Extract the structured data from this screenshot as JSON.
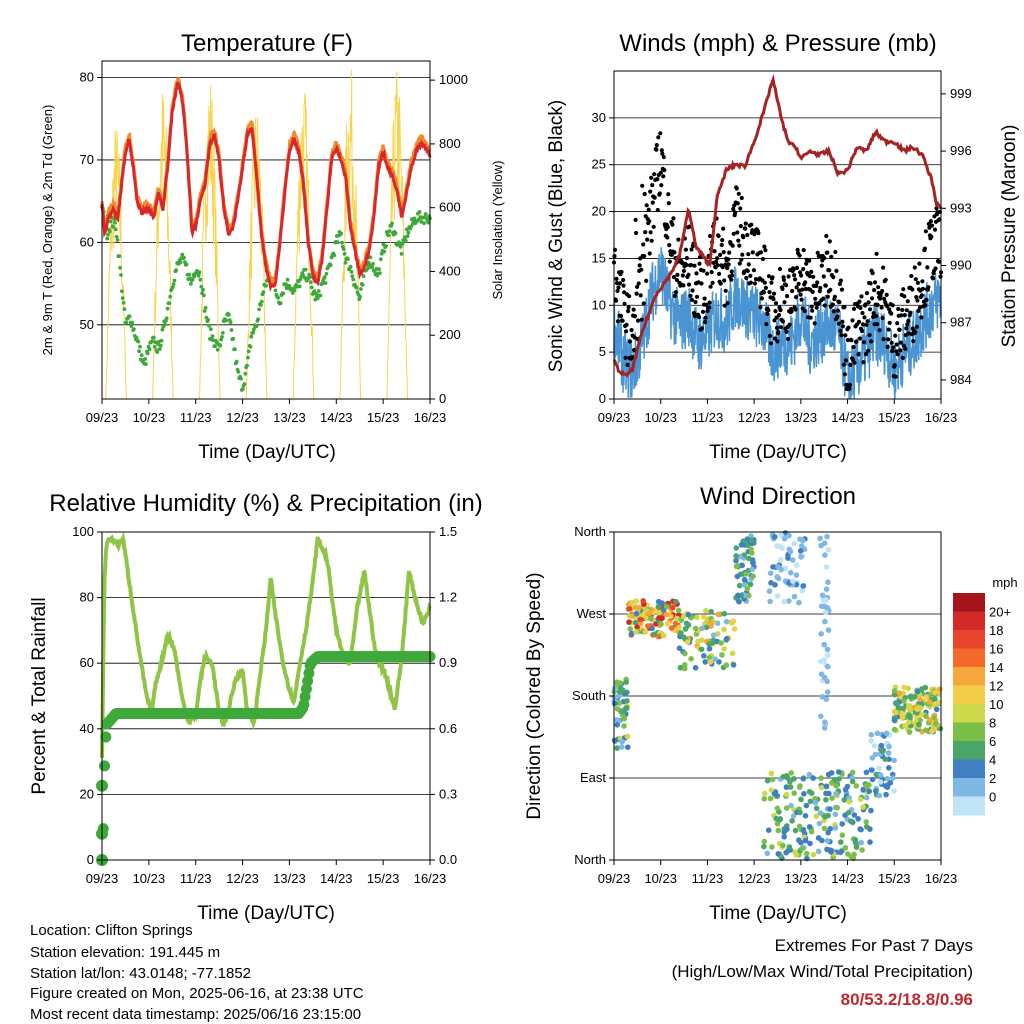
{
  "footer": {
    "location": "Location: Clifton Springs",
    "elevation": "Station elevation: 191.445 m",
    "latlon": "Station lat/lon: 43.0148; -77.1852",
    "created": "Figure created on Mon, 2025-06-16, at 23:38 UTC",
    "recent": "Most recent data timestamp: 2025/06/16 23:15:00",
    "extremes_title": "Extremes For Past 7 Days",
    "extremes_sub": "(High/Low/Max Wind/Total Precipitation)",
    "extremes_values": "80/53.2/18.8/0.96",
    "extremes_color": "#c0282d"
  },
  "chart_data": [
    {
      "id": "temperature",
      "type": "line",
      "title": "Temperature (F)",
      "xlabel": "Time (Day/UTC)",
      "ylabel": "2m & 9m T (Red, Orange) & 2m Td (Green)",
      "ylabel_right": "Solar Insolation (Yellow)",
      "x_ticks": [
        "09/23",
        "10/23",
        "11/23",
        "12/23",
        "13/23",
        "14/23",
        "15/23",
        "16/23"
      ],
      "x_range": [
        0,
        7
      ],
      "ylim": [
        41,
        82
      ],
      "y_ticks": [
        50,
        60,
        70,
        80
      ],
      "ylim_right": [
        0,
        1060
      ],
      "y_ticks_right": [
        0,
        200,
        400,
        600,
        800,
        1000
      ],
      "grid": "horizontal",
      "colors": {
        "t2m": "#d9282b",
        "t9m": "#f08a2c",
        "td": "#3fa83a",
        "solar": "#f7d44c"
      },
      "series": [
        {
          "key": "t2m",
          "x": [
            0,
            0.06,
            0.13,
            0.25,
            0.33,
            0.42,
            0.5,
            0.58,
            0.67,
            0.75,
            0.85,
            0.92,
            1.0,
            1.1,
            1.2,
            1.3,
            1.4,
            1.5,
            1.62,
            1.72,
            1.8,
            1.87,
            1.92,
            2.0,
            2.1,
            2.2,
            2.3,
            2.4,
            2.5,
            2.6,
            2.7,
            2.8,
            2.9,
            3.0,
            3.1,
            3.2,
            3.3,
            3.4,
            3.5,
            3.6,
            3.7,
            3.8,
            3.9,
            4.0,
            4.1,
            4.2,
            4.3,
            4.4,
            4.5,
            4.6,
            4.7,
            4.8,
            4.9,
            5.0,
            5.1,
            5.2,
            5.3,
            5.4,
            5.5,
            5.6,
            5.7,
            5.8,
            5.9,
            6.0,
            6.1,
            6.2,
            6.3,
            6.4,
            6.5,
            6.6,
            6.7,
            6.8,
            6.9,
            7.0
          ],
          "y": [
            64.5,
            61,
            63,
            64,
            62.5,
            67,
            71,
            72.5,
            69,
            65,
            63.5,
            64,
            64,
            63,
            66,
            64,
            69,
            76,
            79.5,
            77,
            72,
            66,
            61,
            62,
            65,
            67,
            72,
            73,
            70,
            64,
            61,
            62,
            65,
            69,
            73,
            74,
            68,
            61,
            57,
            54.5,
            55,
            60,
            66,
            71,
            72.5,
            71,
            67,
            60,
            56,
            55,
            58,
            64,
            70,
            71.5,
            70,
            68,
            62,
            59,
            56,
            57,
            59,
            63,
            69,
            71,
            69,
            68,
            66,
            63,
            66,
            69,
            71,
            72,
            71.5,
            70.5
          ]
        },
        {
          "key": "td",
          "x": [
            0,
            0.1,
            0.2,
            0.3,
            0.4,
            0.5,
            0.6,
            0.7,
            0.8,
            0.9,
            1.0,
            1.1,
            1.2,
            1.3,
            1.4,
            1.5,
            1.6,
            1.7,
            1.8,
            1.9,
            2.0,
            2.1,
            2.2,
            2.3,
            2.4,
            2.5,
            2.6,
            2.7,
            2.8,
            2.9,
            3.0,
            3.1,
            3.2,
            3.3,
            3.4,
            3.5,
            3.6,
            3.7,
            3.8,
            3.9,
            4.0,
            4.1,
            4.2,
            4.3,
            4.4,
            4.5,
            4.6,
            4.7,
            4.8,
            4.9,
            5.0,
            5.1,
            5.2,
            5.3,
            5.4,
            5.5,
            5.6,
            5.7,
            5.8,
            5.9,
            6.0,
            6.1,
            6.2,
            6.3,
            6.4,
            6.5,
            6.6,
            6.7,
            6.8,
            6.9,
            7.0
          ],
          "y": [
            64.5,
            61,
            62.5,
            62,
            56,
            50,
            51,
            49,
            47,
            45,
            47,
            48,
            47,
            49,
            52,
            55,
            57,
            58,
            57,
            55,
            57,
            56,
            52,
            49,
            48,
            47,
            50,
            51,
            48,
            44,
            42.5,
            45,
            49,
            50,
            53,
            55,
            56,
            54,
            53,
            55,
            55,
            54,
            55,
            56,
            56,
            54,
            53,
            55,
            56,
            58,
            60,
            61,
            58,
            57,
            55,
            53,
            56,
            58,
            57,
            56,
            59,
            61,
            62,
            60,
            59,
            61,
            62,
            63,
            63,
            63,
            63
          ]
        },
        {
          "key": "solar",
          "days": [
            0.3,
            1.3,
            2.3,
            3.3,
            4.3,
            5.3,
            6.3
          ],
          "peaks": [
            880,
            1000,
            1050,
            940,
            1020,
            1060,
            1050
          ]
        }
      ]
    },
    {
      "id": "winds",
      "type": "scatter",
      "title": "Winds (mph) & Pressure (mb)",
      "xlabel": "Time (Day/UTC)",
      "ylabel": "Sonic Wind & Gust (Blue, Black)",
      "ylabel_right": "Station Pressure (Maroon)",
      "x_ticks": [
        "09/23",
        "10/23",
        "11/23",
        "12/23",
        "13/23",
        "14/23",
        "15/23",
        "16/23"
      ],
      "x_range": [
        0,
        7
      ],
      "ylim": [
        0,
        35
      ],
      "y_ticks": [
        0,
        5,
        10,
        15,
        20,
        25,
        30
      ],
      "ylim_right": [
        983,
        1000.2
      ],
      "y_ticks_right": [
        984,
        987,
        990,
        993,
        996,
        999
      ],
      "grid": "horizontal",
      "colors": {
        "wind": "#4a94d4",
        "gust": "#000000",
        "pressure": "#a52323"
      },
      "series": [
        {
          "key": "wind_mean",
          "x": [
            0,
            0.2,
            0.4,
            0.6,
            0.8,
            1.0,
            1.2,
            1.4,
            1.6,
            1.8,
            2.0,
            2.2,
            2.4,
            2.6,
            2.8,
            3.0,
            3.2,
            3.4,
            3.6,
            3.8,
            4.0,
            4.2,
            4.4,
            4.6,
            4.8,
            5.0,
            5.2,
            5.4,
            5.6,
            5.8,
            6.0,
            6.2,
            6.4,
            6.6,
            6.8,
            7.0
          ],
          "y": [
            8,
            4,
            3,
            6,
            11,
            14,
            10,
            8,
            9,
            6,
            7,
            9,
            8,
            11,
            10,
            9,
            8,
            5,
            6,
            6,
            9,
            6,
            7,
            8,
            7,
            2,
            3,
            5,
            7,
            6,
            3,
            5,
            6,
            8,
            10,
            11
          ]
        },
        {
          "key": "wind_gust",
          "x": [
            0,
            0.2,
            0.4,
            0.6,
            0.8,
            1.0,
            1.2,
            1.4,
            1.6,
            1.8,
            2.0,
            2.2,
            2.4,
            2.6,
            2.8,
            3.0,
            3.2,
            3.4,
            3.6,
            3.8,
            4.0,
            4.2,
            4.4,
            4.6,
            4.8,
            5.0,
            5.2,
            5.4,
            5.6,
            5.8,
            6.0,
            6.2,
            6.4,
            6.6,
            6.8,
            7.0
          ],
          "y": [
            14,
            9,
            6,
            12,
            20,
            26,
            17,
            13,
            15,
            11,
            12,
            17,
            13,
            19,
            17,
            15,
            13,
            9,
            11,
            10,
            14,
            11,
            12,
            14,
            12,
            4,
            7,
            8,
            12,
            10,
            6,
            8,
            10,
            13,
            16,
            17
          ]
        },
        {
          "key": "pressure",
          "x": [
            0,
            0.1,
            0.25,
            0.4,
            0.6,
            0.9,
            1.2,
            1.4,
            1.6,
            1.75,
            1.9,
            2.05,
            2.2,
            2.4,
            2.6,
            2.8,
            3.0,
            3.2,
            3.4,
            3.6,
            3.75,
            3.9,
            4.0,
            4.2,
            4.4,
            4.6,
            4.8,
            5.0,
            5.2,
            5.4,
            5.6,
            5.8,
            6.0,
            6.2,
            6.4,
            6.6,
            6.8,
            6.9,
            7.0
          ],
          "y": [
            985,
            984.5,
            984.2,
            984.6,
            986.5,
            988.5,
            989.5,
            990.5,
            993.0,
            991.0,
            990.5,
            990.0,
            993.5,
            995.0,
            995.3,
            995.2,
            996.5,
            998.0,
            999.8,
            997.5,
            996.4,
            996.2,
            995.6,
            996.0,
            995.8,
            996.0,
            994.8,
            995.0,
            996.2,
            996.0,
            997.0,
            996.5,
            996.5,
            996.0,
            996.2,
            995.8,
            994.5,
            993.3,
            993.0
          ]
        }
      ]
    },
    {
      "id": "humidity",
      "type": "line",
      "title": "Relative Humidity (%) & Precipitation (in)",
      "xlabel": "Time (Day/UTC)",
      "ylabel": "Percent & Total Rainfall",
      "x_ticks": [
        "09/23",
        "10/23",
        "11/23",
        "12/23",
        "13/23",
        "14/23",
        "15/23",
        "16/23"
      ],
      "x_range": [
        0,
        7
      ],
      "ylim": [
        0,
        100
      ],
      "y_ticks": [
        0,
        20,
        40,
        60,
        80,
        100
      ],
      "ylim_right": [
        0,
        1.5
      ],
      "y_ticks_right": [
        "0.0",
        "0.3",
        "0.6",
        "0.9",
        "1.2",
        "1.5"
      ],
      "grid": "horizontal",
      "colors": {
        "rh": "#8fc446",
        "precip": "#3fa83a"
      },
      "series": [
        {
          "key": "rh",
          "x": [
            0,
            0.05,
            0.1,
            0.2,
            0.3,
            0.35,
            0.45,
            0.55,
            0.65,
            0.8,
            0.95,
            1.05,
            1.15,
            1.3,
            1.4,
            1.55,
            1.7,
            1.85,
            2.0,
            2.1,
            2.2,
            2.35,
            2.5,
            2.6,
            2.7,
            2.85,
            3.0,
            3.1,
            3.25,
            3.35,
            3.5,
            3.6,
            3.7,
            3.85,
            4.0,
            4.1,
            4.2,
            4.35,
            4.5,
            4.6,
            4.8,
            5.0,
            5.15,
            5.3,
            5.45,
            5.6,
            5.75,
            5.85,
            6.0,
            6.1,
            6.25,
            6.4,
            6.55,
            6.7,
            6.85,
            7.0
          ],
          "y": [
            31,
            85,
            97,
            98,
            97,
            96,
            98,
            88,
            78,
            63,
            50,
            45,
            54,
            62,
            69,
            64,
            50,
            42,
            44,
            55,
            62,
            60,
            45,
            41,
            46,
            55,
            58,
            45,
            42,
            54,
            70,
            86,
            75,
            61,
            52,
            48,
            58,
            70,
            85,
            98,
            92,
            70,
            62,
            60,
            77,
            88,
            72,
            62,
            58,
            54,
            46,
            62,
            88,
            79,
            72,
            77
          ]
        },
        {
          "key": "precip",
          "x": [
            0,
            0.03,
            0.06,
            0.1,
            0.3,
            0.6,
            1.0,
            1.5,
            2.0,
            2.5,
            3.0,
            3.5,
            4.0,
            4.2,
            4.3,
            4.45,
            4.6,
            5.0,
            5.5,
            6.0,
            6.5,
            7.0
          ],
          "y": [
            0,
            0.16,
            0.5,
            0.62,
            0.67,
            0.67,
            0.67,
            0.67,
            0.67,
            0.67,
            0.67,
            0.67,
            0.67,
            0.67,
            0.7,
            0.9,
            0.93,
            0.93,
            0.93,
            0.93,
            0.93,
            0.93
          ]
        }
      ]
    },
    {
      "id": "direction",
      "type": "scatter",
      "title": "Wind Direction",
      "xlabel": "Time (Day/UTC)",
      "ylabel": "Direction (Colored By Speed)",
      "x_ticks": [
        "09/23",
        "10/23",
        "11/23",
        "12/23",
        "13/23",
        "14/23",
        "15/23",
        "16/23"
      ],
      "x_range": [
        0,
        7
      ],
      "ylim": [
        0,
        360
      ],
      "y_ticks": [
        "North",
        "East",
        "South",
        "West",
        "North"
      ],
      "grid": "horizontal",
      "legend": {
        "title": "mph",
        "labels": [
          "20+",
          "18",
          "16",
          "14",
          "12",
          "10",
          "8",
          "6",
          "4",
          "2",
          "0"
        ],
        "colors": [
          "#a5141a",
          "#d32a26",
          "#e8442e",
          "#f2692a",
          "#f6a73b",
          "#f2cf46",
          "#cdd94a",
          "#7cbf48",
          "#4aa668",
          "#3f7fc2",
          "#7fb7e5",
          "#bfe3f7"
        ]
      },
      "clusters": [
        {
          "x": [
            0,
            0.3
          ],
          "dir": [
            120,
            200
          ],
          "speed": [
            2,
            10
          ],
          "n": 50
        },
        {
          "x": [
            0.3,
            1.4
          ],
          "dir": [
            245,
            285
          ],
          "speed": [
            4,
            20
          ],
          "n": 120
        },
        {
          "x": [
            1.4,
            2.6
          ],
          "dir": [
            210,
            275
          ],
          "speed": [
            2,
            14
          ],
          "n": 90
        },
        {
          "x": [
            2.6,
            3.0
          ],
          "dir": [
            280,
            360
          ],
          "speed": [
            2,
            8
          ],
          "n": 60
        },
        {
          "x": [
            3.3,
            4.1
          ],
          "dir": [
            280,
            360
          ],
          "speed": [
            0,
            4
          ],
          "n": 60
        },
        {
          "x": [
            4.4,
            4.6
          ],
          "dir": [
            120,
            360
          ],
          "speed": [
            0,
            3
          ],
          "n": 40
        },
        {
          "x": [
            3.2,
            5.5
          ],
          "dir": [
            0,
            100
          ],
          "speed": [
            2,
            10
          ],
          "n": 220
        },
        {
          "x": [
            5.5,
            6.0
          ],
          "dir": [
            70,
            140
          ],
          "speed": [
            0,
            6
          ],
          "n": 50
        },
        {
          "x": [
            6.0,
            7.0
          ],
          "dir": [
            140,
            190
          ],
          "speed": [
            4,
            14
          ],
          "n": 150
        }
      ]
    }
  ]
}
